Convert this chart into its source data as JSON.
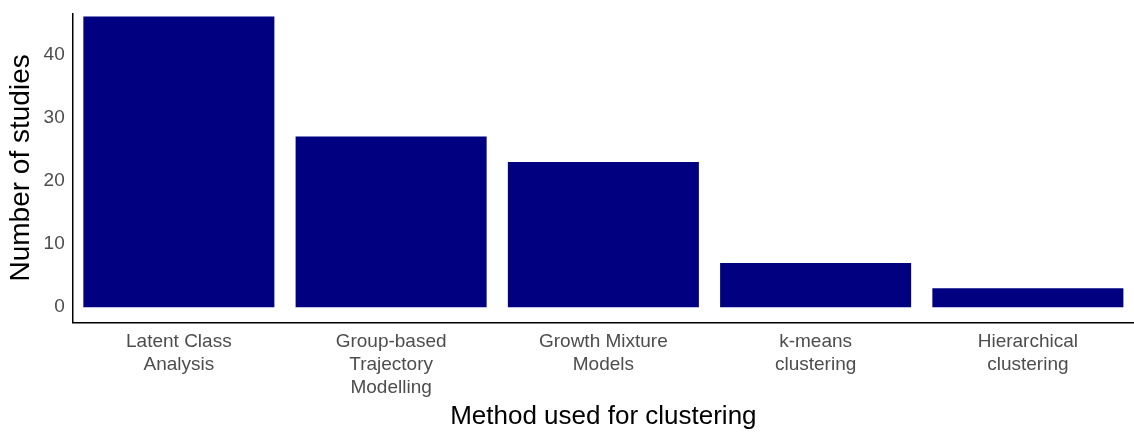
{
  "chart_data": {
    "type": "bar",
    "xlabel": "Method used for clustering",
    "ylabel": "Number of studies",
    "categories": [
      "Latent Class\nAnalysis",
      "Group-based\nTrajectory\nModelling",
      "Growth Mixture\nModels",
      "k-means\nclustering",
      "Hierarchical\nclustering"
    ],
    "values": [
      46,
      27,
      23,
      7,
      3
    ],
    "color": "#000080",
    "ylim": [
      -2.4,
      46.5
    ],
    "yticks": [
      0,
      10,
      20,
      30,
      40
    ],
    "grid": false,
    "legend": false
  }
}
